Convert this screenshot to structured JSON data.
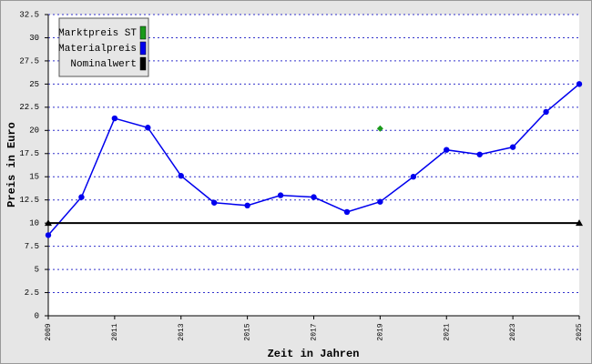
{
  "chart_data": {
    "type": "line",
    "xlabel": "Zeit in Jahren",
    "ylabel": "Preis in Euro",
    "x": [
      2009,
      2010,
      2011,
      2012,
      2013,
      2014,
      2015,
      2016,
      2017,
      2018,
      2019,
      2020,
      2021,
      2022,
      2023,
      2024,
      2025
    ],
    "series": [
      {
        "name": "Marktpreis ST",
        "color": "#1a9a1a",
        "marker": "diamond",
        "values": [
          null,
          null,
          null,
          null,
          null,
          null,
          null,
          null,
          null,
          null,
          20.2,
          null,
          null,
          null,
          null,
          null,
          null
        ]
      },
      {
        "name": "Materialpreis",
        "color": "#0000ee",
        "marker": "circle",
        "values": [
          8.7,
          12.8,
          21.3,
          20.3,
          15.1,
          12.2,
          11.9,
          13.0,
          12.8,
          11.2,
          12.3,
          15.0,
          17.9,
          17.4,
          18.2,
          22.0,
          25.0
        ]
      },
      {
        "name": "Nominalwert",
        "color": "#000000",
        "marker": "triangle",
        "x": [
          2009,
          2025
        ],
        "values": [
          10,
          10
        ]
      }
    ],
    "xlim": [
      2009,
      2025
    ],
    "xticks": [
      2009,
      2011,
      2013,
      2015,
      2017,
      2019,
      2021,
      2023,
      2025
    ],
    "ylim": [
      0,
      32.5
    ],
    "yticks": [
      0,
      2.5,
      5,
      7.5,
      10,
      12.5,
      15,
      17.5,
      20,
      22.5,
      25,
      27.5,
      30,
      32.5
    ],
    "grid": true,
    "legend": "upper left"
  }
}
